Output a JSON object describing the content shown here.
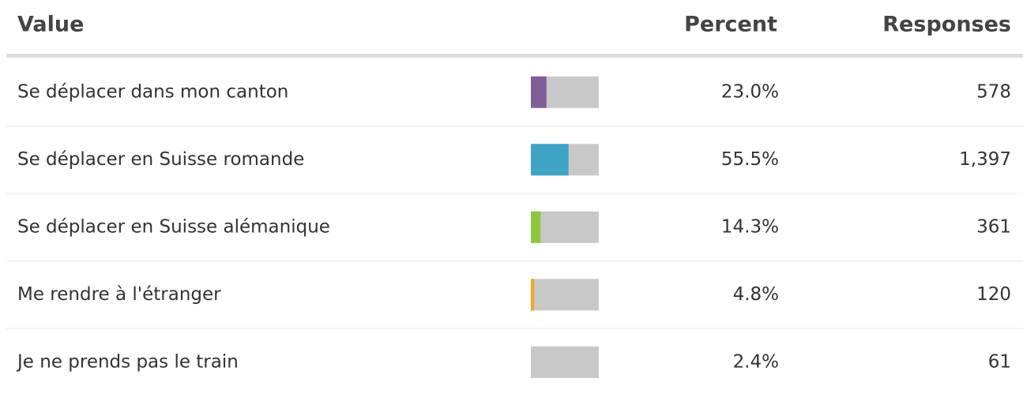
{
  "chart_data": {
    "type": "bar",
    "headers": [
      "Value",
      "Percent",
      "Responses"
    ],
    "categories": [
      "Se déplacer dans mon canton",
      "Se déplacer en Suisse romande",
      "Se déplacer en Suisse alémanique",
      "Me rendre à l'étranger",
      "Je ne prends pas le train"
    ],
    "values": [
      23.0,
      55.5,
      14.3,
      4.8,
      2.4
    ],
    "value_labels": [
      "23.0%",
      "55.5%",
      "14.3%",
      "4.8%",
      "2.4%"
    ],
    "responses": [
      "578",
      "1,397",
      "361",
      "120",
      "61"
    ],
    "colors": [
      "#7f5f9a",
      "#3fa4c6",
      "#8dc63f",
      "#f5a623",
      "#c8c8c8"
    ],
    "xlim": [
      0,
      100
    ]
  }
}
